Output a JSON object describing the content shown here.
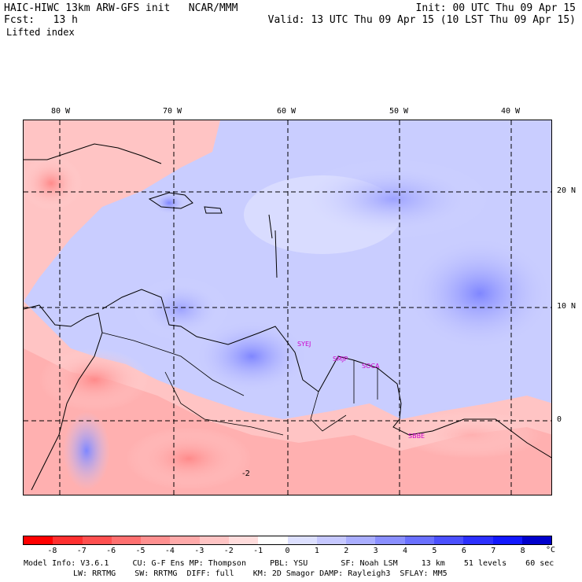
{
  "header": {
    "left1": "HAIC-HIWC 13km ARW-GFS init   NCAR/MMM",
    "left2": "Fcst:   13 h",
    "right1": "Init: 00 UTC Thu 09 Apr 15",
    "right2": "Valid: 13 UTC Thu 09 Apr 15 (10 LST Thu 09 Apr 15)",
    "field": "Lifted index"
  },
  "map": {
    "lon_labels": [
      "80 W",
      "70 W",
      "60 W",
      "50 W",
      "40 W"
    ],
    "lat_labels": [
      "20 N",
      "10 N",
      "0"
    ],
    "stations": [
      "SYEJ",
      "SMJP",
      "SOCA",
      "SBBE"
    ],
    "contour_label": "-2",
    "colors": {
      "land": "#000000",
      "grid": "#000000",
      "station": "#cc00cc"
    }
  },
  "colorbar": {
    "ticks": [
      "-8",
      "-7",
      "-6",
      "-5",
      "-4",
      "-3",
      "-2",
      "-1",
      "0",
      "1",
      "2",
      "3",
      "4",
      "5",
      "6",
      "7",
      "8"
    ],
    "unit": "°C",
    "colors": [
      "#ff0000",
      "#ff3030",
      "#ff5050",
      "#ff7070",
      "#ff9090",
      "#ffaaaa",
      "#ffc4c4",
      "#ffdcdc",
      "#ffffff",
      "#dde0ff",
      "#c6c8ff",
      "#aaaeff",
      "#8a8fff",
      "#6a70ff",
      "#4b50ff",
      "#2c30ff",
      "#1218ff",
      "#0000cc"
    ]
  },
  "footer": {
    "line1": "Model Info: V3.6.1     CU: G-F Ens MP: Thompson     PBL: YSU       SF: Noah LSM     13 km    51 levels    60 sec",
    "line2": "LW: RRTMG    SW: RRTMG  DIFF: full    KM: 2D Smagor DAMP: Rayleigh3  SFLAY: MM5"
  }
}
